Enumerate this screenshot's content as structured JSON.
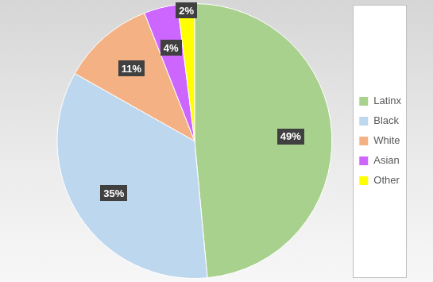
{
  "chart_data": {
    "type": "pie",
    "categories": [
      "Latinx",
      "Black",
      "White",
      "Asian",
      "Other"
    ],
    "values": [
      49,
      35,
      11,
      4,
      2
    ],
    "value_labels": [
      "49%",
      "35%",
      "11%",
      "4%",
      "2%"
    ],
    "colors": [
      "#a9d18e",
      "#bdd7ee",
      "#f4b183",
      "#cc66ff",
      "#ffff00"
    ],
    "data_labels": true,
    "legend": "right"
  }
}
